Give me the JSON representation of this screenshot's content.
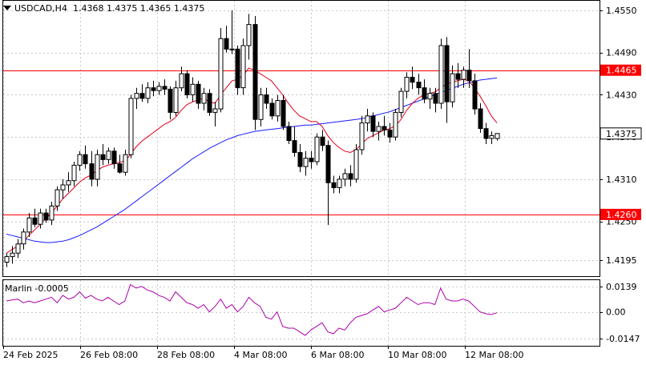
{
  "header": {
    "symbol_timeframe": "USDCAD,H4",
    "ohlc": "1.4368 1.4375 1.4365 1.4375"
  },
  "oscillator": {
    "name": "Marlin",
    "value": "-0.0005",
    "ticks": [
      "0.0139",
      "0.00",
      "-0.0147"
    ]
  },
  "colors": {
    "level_line": "#ff0000",
    "fast_ma": "#e0001a",
    "slow_ma": "#1a1aff",
    "oscillator": "#aa00aa",
    "price_label_bg": "#ff0000",
    "current_price_bg": "#ffffff"
  },
  "chart_data": {
    "type": "candlestick",
    "symbol": "USDCAD",
    "timeframe": "H4",
    "price_ticks": [
      "1.4550",
      "1.4490",
      "1.4430",
      "1.4370",
      "1.4310",
      "1.4250",
      "1.4195"
    ],
    "levels": [
      {
        "price": 1.4465,
        "label": "1.4465"
      },
      {
        "price": 1.426,
        "label": "1.4260"
      }
    ],
    "current_price": {
      "price": 1.4375,
      "label": "1.4375"
    },
    "x_labels": [
      "24 Feb 2025",
      "26 Feb 08:00",
      "28 Feb 08:00",
      "4 Mar 08:00",
      "6 Mar 08:00",
      "10 Mar 08:00",
      "12 Mar 08:00"
    ],
    "candles": [
      [
        1.4192,
        1.4205,
        1.4185,
        1.42
      ],
      [
        1.42,
        1.4215,
        1.419,
        1.4205
      ],
      [
        1.4205,
        1.4225,
        1.4198,
        1.4218
      ],
      [
        1.4218,
        1.424,
        1.421,
        1.4235
      ],
      [
        1.4235,
        1.4262,
        1.4228,
        1.4255
      ],
      [
        1.4255,
        1.4268,
        1.4242,
        1.4246
      ],
      [
        1.4246,
        1.4268,
        1.424,
        1.4262
      ],
      [
        1.4262,
        1.4268,
        1.4248,
        1.4252
      ],
      [
        1.4252,
        1.4278,
        1.4245,
        1.4272
      ],
      [
        1.4272,
        1.43,
        1.4265,
        1.4295
      ],
      [
        1.4295,
        1.431,
        1.4282,
        1.4302
      ],
      [
        1.4302,
        1.432,
        1.4292,
        1.4308
      ],
      [
        1.4308,
        1.4335,
        1.43,
        1.433
      ],
      [
        1.433,
        1.435,
        1.4322,
        1.4345
      ],
      [
        1.4345,
        1.4358,
        1.4325,
        1.4332
      ],
      [
        1.4332,
        1.435,
        1.43,
        1.431
      ],
      [
        1.431,
        1.4352,
        1.43,
        1.4345
      ],
      [
        1.4345,
        1.436,
        1.433,
        1.4338
      ],
      [
        1.4338,
        1.4355,
        1.4332,
        1.435
      ],
      [
        1.435,
        1.4355,
        1.4325,
        1.4332
      ],
      [
        1.4332,
        1.4345,
        1.4318,
        1.432
      ],
      [
        1.432,
        1.4352,
        1.4315,
        1.4345
      ],
      [
        1.4345,
        1.443,
        1.434,
        1.4425
      ],
      [
        1.4425,
        1.444,
        1.441,
        1.4432
      ],
      [
        1.4432,
        1.4445,
        1.442,
        1.4425
      ],
      [
        1.4425,
        1.4448,
        1.4418,
        1.444
      ],
      [
        1.444,
        1.445,
        1.4428,
        1.4436
      ],
      [
        1.4436,
        1.4448,
        1.443,
        1.4442
      ],
      [
        1.4442,
        1.4452,
        1.443,
        1.4438
      ],
      [
        1.4438,
        1.4442,
        1.4395,
        1.4405
      ],
      [
        1.4405,
        1.445,
        1.44,
        1.444
      ],
      [
        1.444,
        1.447,
        1.4435,
        1.446
      ],
      [
        1.446,
        1.4465,
        1.4425,
        1.443
      ],
      [
        1.443,
        1.4455,
        1.442,
        1.4445
      ],
      [
        1.4445,
        1.445,
        1.441,
        1.4418
      ],
      [
        1.4418,
        1.444,
        1.4408,
        1.4432
      ],
      [
        1.4432,
        1.4438,
        1.44,
        1.4405
      ],
      [
        1.4405,
        1.442,
        1.4385,
        1.441
      ],
      [
        1.441,
        1.4525,
        1.4405,
        1.451
      ],
      [
        1.451,
        1.4528,
        1.449,
        1.4495
      ],
      [
        1.4495,
        1.455,
        1.4488,
        1.4495
      ],
      [
        1.4495,
        1.45,
        1.443,
        1.444
      ],
      [
        1.444,
        1.451,
        1.443,
        1.45
      ],
      [
        1.45,
        1.4545,
        1.448,
        1.453
      ],
      [
        1.453,
        1.4542,
        1.438,
        1.4395
      ],
      [
        1.4395,
        1.444,
        1.4385,
        1.443
      ],
      [
        1.443,
        1.444,
        1.441,
        1.4418
      ],
      [
        1.4418,
        1.4425,
        1.4395,
        1.44
      ],
      [
        1.44,
        1.443,
        1.4392,
        1.4422
      ],
      [
        1.4422,
        1.443,
        1.438,
        1.4385
      ],
      [
        1.4385,
        1.4392,
        1.436,
        1.4365
      ],
      [
        1.4365,
        1.4385,
        1.4342,
        1.4348
      ],
      [
        1.4348,
        1.436,
        1.432,
        1.4328
      ],
      [
        1.4328,
        1.435,
        1.4315,
        1.434
      ],
      [
        1.434,
        1.435,
        1.4325,
        1.4335
      ],
      [
        1.4335,
        1.4375,
        1.433,
        1.437
      ],
      [
        1.437,
        1.438,
        1.435,
        1.4358
      ],
      [
        1.4358,
        1.4365,
        1.4245,
        1.4305
      ],
      [
        1.4305,
        1.4315,
        1.429,
        1.4298
      ],
      [
        1.4298,
        1.4315,
        1.429,
        1.431
      ],
      [
        1.431,
        1.4325,
        1.43,
        1.4318
      ],
      [
        1.4318,
        1.433,
        1.43,
        1.431
      ],
      [
        1.431,
        1.436,
        1.4305,
        1.4352
      ],
      [
        1.4352,
        1.44,
        1.4345,
        1.439
      ],
      [
        1.439,
        1.441,
        1.4378,
        1.44
      ],
      [
        1.44,
        1.4405,
        1.437,
        1.4378
      ],
      [
        1.4378,
        1.4392,
        1.4365,
        1.4385
      ],
      [
        1.4385,
        1.44,
        1.4372,
        1.438
      ],
      [
        1.438,
        1.439,
        1.4362,
        1.437
      ],
      [
        1.437,
        1.441,
        1.4365,
        1.4405
      ],
      [
        1.4405,
        1.444,
        1.4398,
        1.4435
      ],
      [
        1.4435,
        1.4462,
        1.4425,
        1.4455
      ],
      [
        1.4455,
        1.447,
        1.4438,
        1.4448
      ],
      [
        1.4448,
        1.446,
        1.443,
        1.444
      ],
      [
        1.444,
        1.4452,
        1.4418,
        1.4424
      ],
      [
        1.4424,
        1.444,
        1.441,
        1.4432
      ],
      [
        1.4432,
        1.444,
        1.4405,
        1.4418
      ],
      [
        1.4418,
        1.451,
        1.441,
        1.45
      ],
      [
        1.45,
        1.4512,
        1.439,
        1.442
      ],
      [
        1.442,
        1.4472,
        1.4412,
        1.446
      ],
      [
        1.446,
        1.4475,
        1.444,
        1.4452
      ],
      [
        1.4452,
        1.447,
        1.444,
        1.4465
      ],
      [
        1.4465,
        1.4495,
        1.444,
        1.445
      ],
      [
        1.445,
        1.446,
        1.4402,
        1.441
      ],
      [
        1.441,
        1.4418,
        1.4376,
        1.4382
      ],
      [
        1.4382,
        1.439,
        1.436,
        1.4368
      ],
      [
        1.4368,
        1.4378,
        1.436,
        1.4372
      ],
      [
        1.4368,
        1.4375,
        1.4365,
        1.4375
      ]
    ],
    "fast_ma": [
      1.4205,
      1.421,
      1.4215,
      1.4222,
      1.423,
      1.4238,
      1.4246,
      1.4254,
      1.4262,
      1.4272,
      1.4282,
      1.429,
      1.4298,
      1.4306,
      1.4312,
      1.4316,
      1.4322,
      1.4327,
      1.433,
      1.4332,
      1.4334,
      1.4336,
      1.4345,
      1.4356,
      1.4364,
      1.437,
      1.4376,
      1.4382,
      1.4388,
      1.4392,
      1.4398,
      1.4408,
      1.4416,
      1.442,
      1.4423,
      1.4425,
      1.442,
      1.4418,
      1.443,
      1.444,
      1.445,
      1.4452,
      1.4458,
      1.4468,
      1.4465,
      1.446,
      1.4455,
      1.445,
      1.444,
      1.443,
      1.4418,
      1.4408,
      1.44,
      1.4396,
      1.4392,
      1.4392,
      1.4385,
      1.4372,
      1.4362,
      1.4355,
      1.435,
      1.4348,
      1.4352,
      1.436,
      1.4368,
      1.4372,
      1.4376,
      1.438,
      1.4382,
      1.4386,
      1.4395,
      1.4408,
      1.4418,
      1.4425,
      1.443,
      1.4432,
      1.4434,
      1.444,
      1.4445,
      1.4448,
      1.445,
      1.4452,
      1.445,
      1.444,
      1.4428,
      1.4415,
      1.44,
      1.439
    ],
    "slow_ma": [
      1.4232,
      1.423,
      1.4228,
      1.4226,
      1.4224,
      1.4222,
      1.4221,
      1.422,
      1.422,
      1.4221,
      1.4222,
      1.4224,
      1.4227,
      1.423,
      1.4234,
      1.4238,
      1.4242,
      1.4247,
      1.4252,
      1.4257,
      1.4262,
      1.4267,
      1.4273,
      1.4279,
      1.4285,
      1.4291,
      1.4297,
      1.4303,
      1.4309,
      1.4315,
      1.4321,
      1.4327,
      1.4333,
      1.4339,
      1.4344,
      1.4349,
      1.4354,
      1.4358,
      1.4362,
      1.4366,
      1.4369,
      1.4372,
      1.4374,
      1.4376,
      1.4378,
      1.4379,
      1.438,
      1.4381,
      1.4382,
      1.4383,
      1.4384,
      1.4385,
      1.4386,
      1.4387,
      1.4387,
      1.4388,
      1.4389,
      1.439,
      1.4391,
      1.4392,
      1.4393,
      1.4394,
      1.4395,
      1.4396,
      1.4398,
      1.44,
      1.4402,
      1.4404,
      1.4406,
      1.4409,
      1.4412,
      1.4415,
      1.4418,
      1.4421,
      1.4424,
      1.4427,
      1.443,
      1.4433,
      1.4436,
      1.4439,
      1.4442,
      1.4445,
      1.4447,
      1.4449,
      1.4451,
      1.4452,
      1.4453,
      1.4454
    ],
    "marlin": [
      0.006,
      0.0065,
      0.007,
      0.005,
      0.006,
      0.005,
      0.006,
      0.007,
      0.008,
      0.005,
      0.009,
      0.007,
      0.008,
      0.011,
      0.0075,
      0.009,
      0.007,
      0.006,
      0.008,
      0.006,
      0.004,
      0.006,
      0.015,
      0.013,
      0.014,
      0.012,
      0.011,
      0.009,
      0.008,
      0.006,
      0.011,
      0.008,
      0.005,
      0.004,
      0.002,
      0.004,
      0.0,
      0.003,
      0.007,
      0.002,
      0.004,
      0.0,
      0.003,
      0.008,
      0.005,
      0.003,
      -0.003,
      -0.004,
      0.0,
      -0.008,
      -0.009,
      -0.009,
      -0.011,
      -0.013,
      -0.01,
      -0.008,
      -0.006,
      -0.011,
      -0.012,
      -0.009,
      -0.01,
      -0.006,
      -0.003,
      -0.002,
      -0.001,
      0.001,
      0.003,
      0.0,
      0.001,
      0.002,
      0.005,
      0.008,
      0.006,
      0.004,
      0.005,
      0.005,
      0.004,
      0.013,
      0.007,
      0.006,
      0.006,
      0.007,
      0.006,
      0.003,
      0.0,
      -0.001,
      -0.0015,
      -0.0005
    ]
  }
}
